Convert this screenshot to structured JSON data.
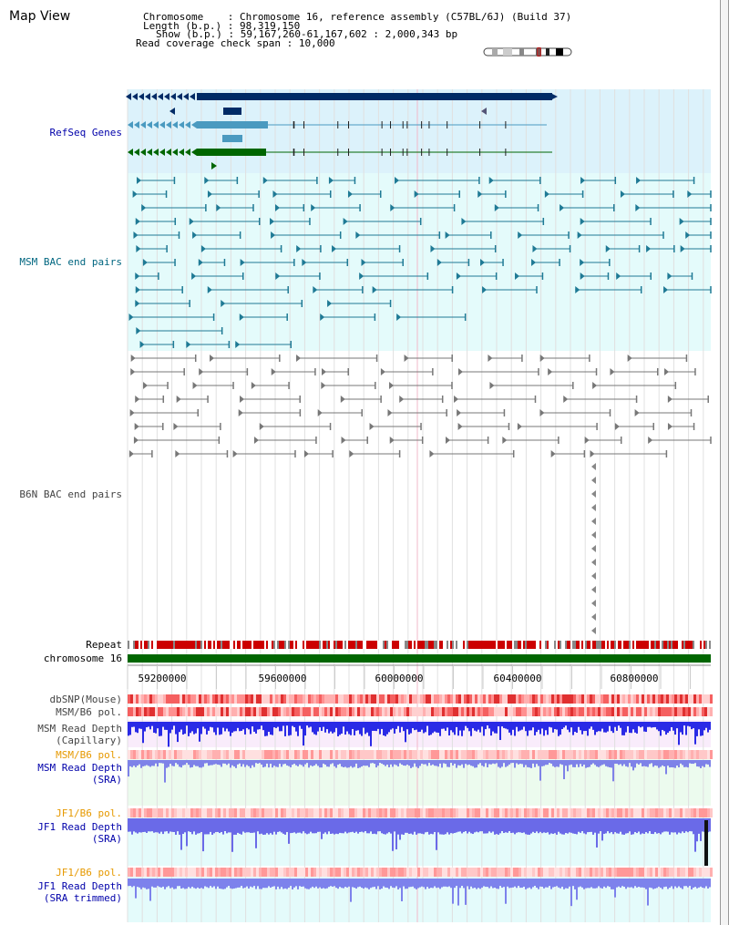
{
  "title": "Map View",
  "info": {
    "chromosome_label": "Chromosome",
    "chromosome_value": "Chromosome 16, reference assembly (C57BL/6J) (Build 37)",
    "length_label": "Length (b.p.)",
    "length_value": "98,319,150",
    "show_label": "Show (b.p.)",
    "show_value": "59,167,260-61,167,602 : 2,000,343 bp",
    "coverage_label": "Read coverage check span",
    "coverage_value": "10,000"
  },
  "tracks": {
    "refseq": "RefSeq Genes",
    "msm_bac": "MSM BAC end pairs",
    "b6n_bac": "B6N BAC end pairs",
    "repeat": "Repeat",
    "chromosome": "chromosome 16",
    "dbsnp": "dbSNP(Mouse)",
    "msm_b6_pol_1": "MSM/B6 pol.",
    "msm_depth_cap_1": "MSM Read Depth",
    "msm_depth_cap_2": "(Capillary)",
    "msm_b6_pol_2": "MSM/B6 pol.",
    "msm_depth_sra_1": "MSM Read Depth",
    "msm_depth_sra_2": "(SRA)",
    "jf1_b6_pol_1": "JF1/B6 pol.",
    "jf1_depth_sra_1": "JF1 Read Depth",
    "jf1_depth_sra_2": "(SRA)",
    "jf1_b6_pol_2": "JF1/B6 pol.",
    "jf1_depth_trim_1": "JF1 Read Depth",
    "jf1_depth_trim_2": "(SRA trimmed)"
  },
  "ruler": {
    "ticks": [
      "59200000",
      "59600000",
      "60000000",
      "60400000",
      "60800000"
    ]
  },
  "colors": {
    "refseq_bg": "#dcf2fb",
    "msm_bg": "#e4fbfb",
    "label_blue": "#0000aa",
    "label_teal": "#006680",
    "label_gray": "#333333",
    "label_orange": "#e69900",
    "chromosome_green": "#006600",
    "gene_navy": "#002b66",
    "gene_teal": "#4a9ac0",
    "gene_green": "#006600"
  }
}
